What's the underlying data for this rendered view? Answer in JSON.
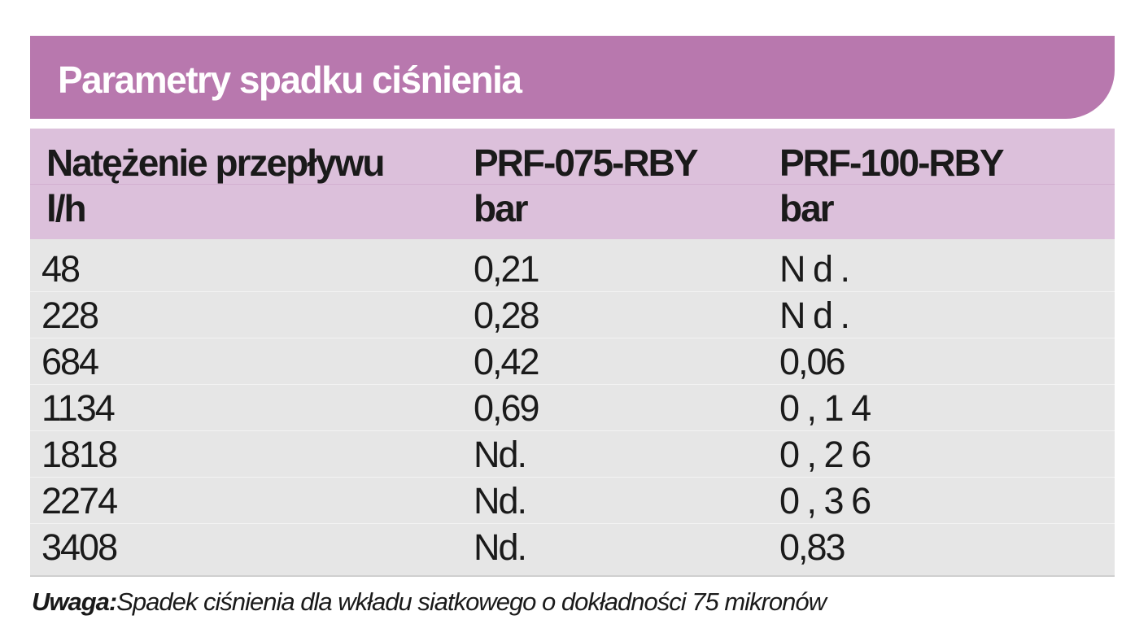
{
  "table": {
    "title": "Parametry spadku ciśnienia",
    "headers": [
      {
        "line1": "Natężenie przepływu",
        "line2": "l/h"
      },
      {
        "line1": "PRF-075-RBY",
        "line2": "bar"
      },
      {
        "line1": "PRF-100-RBY",
        "line2": "bar"
      }
    ],
    "rows": [
      [
        "48",
        "0,21",
        "N d ."
      ],
      [
        "228",
        "0,28",
        "N d ."
      ],
      [
        "684",
        "0,42",
        "0,06"
      ],
      [
        "1134",
        "0,69",
        "0 , 1 4"
      ],
      [
        "1818",
        "Nd.",
        "0 , 2 6"
      ],
      [
        "2274",
        "Nd.",
        "0 , 3 6"
      ],
      [
        "3408",
        "Nd.",
        "0,83"
      ]
    ]
  },
  "note": {
    "label": "Uwaga:",
    "text": "Spadek ciśnienia dla wkładu siatkowego o dokładności 75 mikronów"
  },
  "colors": {
    "title_bg": "#b878ae",
    "header_bg": "#dcc0db",
    "body_bg": "#e6e6e6"
  }
}
